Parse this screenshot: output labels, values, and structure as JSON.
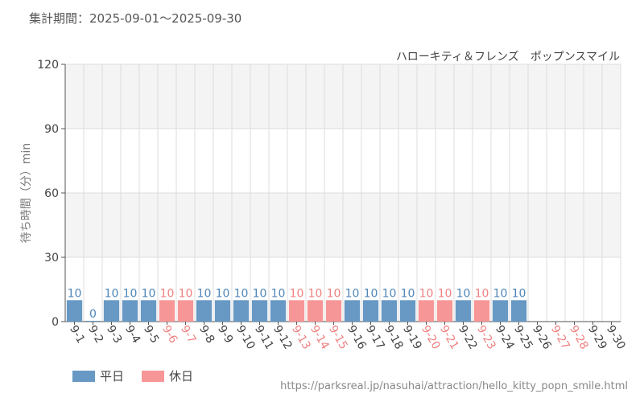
{
  "header": {
    "period_label": "集計期間：2025-09-01～2025-09-30",
    "attraction_name": "ハローキティ＆フレンズ　ポップンスマイル"
  },
  "footer": {
    "source_url": "https://parksreal.jp/nasuhai/attraction/hello_kitty_popn_smile.html"
  },
  "legend": {
    "weekday_label": "平日",
    "holiday_label": "休日"
  },
  "colors": {
    "weekday": "#6799c4",
    "holiday": "#f79696",
    "holiday_text": "#f08080",
    "weekday_text": "#4f86b8",
    "band": "#f4f4f4",
    "grid": "#dddddd",
    "axis": "#555555"
  },
  "chart_data": {
    "type": "bar",
    "title": "ハローキティ＆フレンズ　ポップンスマイル",
    "ylabel": "待ち時間（分）min",
    "ylim": [
      0,
      120
    ],
    "yticks": [
      0,
      30,
      60,
      90,
      120
    ],
    "grid": true,
    "legend_position": "bottom-left",
    "categories": [
      "9-1",
      "9-2",
      "9-3",
      "9-4",
      "9-5",
      "9-6",
      "9-7",
      "9-8",
      "9-9",
      "9-10",
      "9-11",
      "9-12",
      "9-13",
      "9-14",
      "9-15",
      "9-16",
      "9-17",
      "9-18",
      "9-19",
      "9-20",
      "9-21",
      "9-22",
      "9-23",
      "9-24",
      "9-25",
      "9-26",
      "9-27",
      "9-28",
      "9-29",
      "9-30"
    ],
    "values": [
      10,
      0,
      10,
      10,
      10,
      10,
      10,
      10,
      10,
      10,
      10,
      10,
      10,
      10,
      10,
      10,
      10,
      10,
      10,
      10,
      10,
      10,
      10,
      10,
      10,
      null,
      null,
      null,
      null,
      null
    ],
    "holiday": [
      false,
      false,
      false,
      false,
      false,
      true,
      true,
      false,
      false,
      false,
      false,
      false,
      true,
      true,
      true,
      false,
      false,
      false,
      false,
      true,
      true,
      false,
      true,
      false,
      false,
      false,
      true,
      true,
      false,
      false
    ],
    "series": [
      {
        "name": "平日"
      },
      {
        "name": "休日"
      }
    ]
  }
}
